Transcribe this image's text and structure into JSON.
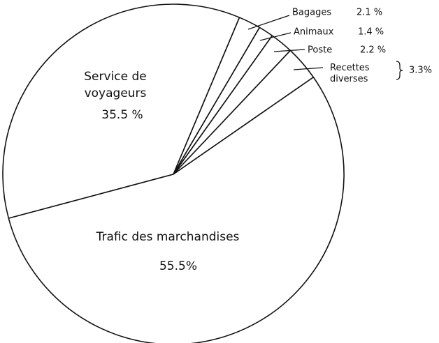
{
  "chart_data": {
    "type": "pie",
    "categories": [
      "Service de voyageurs",
      "Bagages",
      "Animaux",
      "Poste",
      "Recettes diverses",
      "Trafic des marchandises"
    ],
    "values": [
      35.5,
      2.1,
      1.4,
      2.2,
      3.3,
      55.5
    ],
    "value_labels": [
      "35.5 %",
      "2.1 %",
      "1.4 %",
      "2.2 %",
      "3.3%",
      "55.5%"
    ],
    "color": "#ffffff"
  }
}
